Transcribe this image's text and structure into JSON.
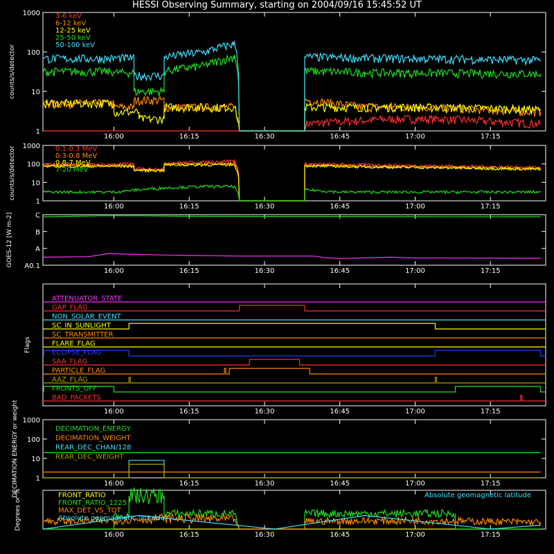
{
  "title": "HESSI Observing Summary, starting on 2004/09/16 15:45:52 UT",
  "time_ticks": [
    "16:00",
    "16:15",
    "16:30",
    "16:45",
    "17:00",
    "17:15"
  ],
  "colors": {
    "red": "#ff3030",
    "orange": "#ff8a00",
    "yellow": "#ffff00",
    "green": "#20e020",
    "cyan": "#40e0ff",
    "magenta": "#ff30ff",
    "blue": "#2040ff",
    "olive": "#b0a000",
    "white": "#ffffff"
  },
  "chart_data": [
    {
      "type": "line",
      "panel": "hxr",
      "ylabel": "counts/s/detector",
      "yscale": "log",
      "ylim": [
        1,
        1000
      ],
      "ytick_labels": [
        "1",
        "10",
        "100",
        "1000"
      ],
      "x_unit": "UT time",
      "series": [
        {
          "name": "3-6 keV",
          "color": "red",
          "x": [
            "15:46",
            "16:00",
            "16:00",
            "16:03",
            "16:08",
            "16:08",
            "16:14",
            "16:24",
            "16:24",
            "16:38",
            "16:38",
            "16:55",
            "17:05",
            "17:25"
          ],
          "y": [
            1,
            1,
            1,
            1,
            1,
            1,
            1,
            1,
            1,
            1,
            1.5,
            2,
            2,
            1.5
          ]
        },
        {
          "name": "6-12 keV",
          "color": "orange",
          "x": [
            "15:46",
            "16:00",
            "16:00",
            "16:04",
            "16:04",
            "16:10",
            "16:10",
            "16:24",
            "16:25",
            "16:38",
            "16:38",
            "16:50",
            "17:00",
            "17:25"
          ],
          "y": [
            5,
            5,
            4,
            4,
            6,
            6,
            4,
            4,
            1,
            1,
            6,
            4,
            4,
            3
          ]
        },
        {
          "name": "12-25 keV",
          "color": "yellow",
          "x": [
            "15:46",
            "16:00",
            "16:00",
            "16:05",
            "16:05",
            "16:10",
            "16:10",
            "16:24",
            "16:25",
            "16:38",
            "16:38",
            "17:00",
            "17:25"
          ],
          "y": [
            5,
            5,
            3,
            3,
            2,
            2,
            4,
            4,
            1,
            1,
            4,
            4,
            3.5
          ]
        },
        {
          "name": "25-50 keV",
          "color": "green",
          "x": [
            "15:46",
            "16:00",
            "16:00",
            "16:04",
            "16:04",
            "16:10",
            "16:10",
            "16:18",
            "16:24",
            "16:24",
            "16:25",
            "16:38",
            "16:38",
            "16:50",
            "17:10",
            "17:25"
          ],
          "y": [
            32,
            32,
            30,
            30,
            10,
            10,
            33,
            45,
            75,
            85,
            1,
            1,
            33,
            30,
            29,
            28
          ]
        },
        {
          "name": "50-100 keV",
          "color": "cyan",
          "x": [
            "15:46",
            "16:00",
            "16:00",
            "16:04",
            "16:04",
            "16:10",
            "16:10",
            "16:18",
            "16:24",
            "16:24",
            "16:25",
            "16:38",
            "16:38",
            "16:50",
            "17:10",
            "17:25"
          ],
          "y": [
            68,
            68,
            70,
            70,
            25,
            25,
            75,
            100,
            160,
            180,
            1,
            1,
            75,
            70,
            66,
            62
          ]
        }
      ]
    },
    {
      "type": "line",
      "panel": "gamma",
      "ylabel": "counts/s/detector",
      "yscale": "log",
      "ylim": [
        1,
        1000
      ],
      "ytick_labels": [
        "1",
        "10",
        "100",
        "1000"
      ],
      "series": [
        {
          "name": "0.1-0.3 MeV",
          "color": "red",
          "x": [
            "15:46",
            "16:00",
            "16:00",
            "16:04",
            "16:04",
            "16:10",
            "16:10",
            "16:18",
            "16:24",
            "16:24",
            "16:25",
            "16:38",
            "16:38",
            "16:50",
            "17:10",
            "17:25"
          ],
          "y": [
            95,
            95,
            100,
            100,
            55,
            55,
            115,
            125,
            150,
            160,
            1,
            1,
            100,
            90,
            75,
            65
          ]
        },
        {
          "name": "0.3-0.8 MeV",
          "color": "orange",
          "x": [
            "15:46",
            "16:00",
            "16:00",
            "16:04",
            "16:04",
            "16:10",
            "16:10",
            "16:24",
            "16:24",
            "16:25",
            "16:38",
            "16:38",
            "16:50",
            "17:10",
            "17:25"
          ],
          "y": [
            80,
            80,
            80,
            80,
            45,
            45,
            95,
            110,
            120,
            1,
            1,
            85,
            75,
            62,
            55
          ]
        },
        {
          "name": "0.8-7 MeV",
          "color": "yellow",
          "x": [
            "15:46",
            "16:00",
            "16:00",
            "16:04",
            "16:04",
            "16:10",
            "16:10",
            "16:24",
            "16:25",
            "16:38",
            "16:38",
            "16:50",
            "17:10",
            "17:25"
          ],
          "y": [
            75,
            75,
            75,
            75,
            45,
            45,
            88,
            90,
            1,
            1,
            80,
            70,
            60,
            52
          ]
        },
        {
          "name": "7-20 MeV",
          "color": "green",
          "x": [
            "15:46",
            "16:00",
            "16:05",
            "16:10",
            "16:18",
            "16:24",
            "16:25",
            "16:38",
            "16:38",
            "16:45",
            "17:00",
            "17:25"
          ],
          "y": [
            3,
            3,
            4,
            5,
            6,
            6,
            1,
            1,
            4,
            3,
            3,
            3
          ]
        }
      ]
    },
    {
      "type": "line",
      "panel": "goes",
      "ylabel": "GOES-12 [W m-2]",
      "yscale": "log",
      "ylim": [
        1e-09,
        1e-06
      ],
      "ytick_labels": [
        "A0.1",
        "A",
        "B",
        "C"
      ],
      "series": [
        {
          "name": "",
          "color": "green",
          "x": [
            "15:46",
            "15:58",
            "16:05",
            "16:15",
            "16:30",
            "16:45",
            "17:00",
            "17:25"
          ],
          "y": [
            7.5e-07,
            8.5e-07,
            8.5e-07,
            8e-07,
            7.8e-07,
            7.8e-07,
            7.6e-07,
            7.5e-07
          ]
        },
        {
          "name": "",
          "color": "magenta",
          "x": [
            "15:46",
            "15:55",
            "15:59",
            "16:03",
            "16:10",
            "16:25",
            "16:40",
            "16:42",
            "16:45",
            "16:55",
            "17:00",
            "17:25"
          ],
          "y": [
            3e-09,
            3.2e-09,
            5e-09,
            4.5e-09,
            4e-09,
            3.5e-09,
            3.5e-09,
            2.8e-09,
            2.5e-09,
            3e-09,
            2.7e-09,
            2.6e-09
          ]
        }
      ]
    },
    {
      "type": "step",
      "panel": "flags",
      "ylabel": "Flags",
      "series": [
        {
          "name": "ATTENUATOR_STATE",
          "color": "magenta",
          "segments": []
        },
        {
          "name": "GAP_FLAG",
          "color": "red",
          "segments": [
            [
              "16:25",
              "16:38"
            ]
          ]
        },
        {
          "name": "NON_SOLAR_EVENT",
          "color": "cyan",
          "segments": []
        },
        {
          "name": "SC_IN_SUNLIGHT",
          "color": "yellow",
          "segments": [
            [
              "16:03",
              "17:04"
            ]
          ]
        },
        {
          "name": "SC_TRANSMITTER",
          "color": "orange",
          "segments": []
        },
        {
          "name": "FLARE_FLAG",
          "color": "yellow",
          "segments": []
        },
        {
          "name": "ECLIPSE_FLAG",
          "color": "blue",
          "segments": [
            [
              "15:46",
              "16:03"
            ],
            [
              "17:04",
              "17:25"
            ]
          ]
        },
        {
          "name": "SAA_FLAG",
          "color": "red",
          "segments": [
            [
              "16:27",
              "16:37"
            ]
          ]
        },
        {
          "name": "PARTICLE_FLAG",
          "color": "orange",
          "segments": [
            [
              "16:22",
              "16:22"
            ],
            [
              "16:23",
              "16:39"
            ]
          ]
        },
        {
          "name": "AAZ_FLAG",
          "color": "olive",
          "segments": [
            [
              "16:03",
              "16:03"
            ],
            [
              "17:04",
              "17:04"
            ]
          ]
        },
        {
          "name": "FRONTS_OFF",
          "color": "green",
          "segments": [
            [
              "15:46",
              "16:00"
            ],
            [
              "17:08",
              "17:25"
            ]
          ]
        },
        {
          "name": "BAD_PACKETS",
          "color": "red",
          "segments": [
            [
              "17:21",
              "17:21"
            ]
          ]
        }
      ]
    },
    {
      "type": "line",
      "panel": "decimation",
      "ylabel": "DECIMATION ENERGY or weight",
      "yscale": "log",
      "ylim": [
        1,
        1000
      ],
      "ytick_labels": [
        "1",
        "10",
        "100",
        "1000"
      ],
      "series": [
        {
          "name": "DECIMATION_ENERGY",
          "color": "green",
          "x": [
            "15:46",
            "17:25"
          ],
          "y": [
            20,
            20
          ]
        },
        {
          "name": "DECIMATION_WEIGHT",
          "color": "orange",
          "x": [
            "15:46",
            "17:25"
          ],
          "y": [
            2,
            2
          ]
        },
        {
          "name": "REAR_DEC_CHAN/128",
          "color": "cyan",
          "x": [
            "15:46",
            "16:03",
            "16:03",
            "16:10",
            "16:10",
            "17:25"
          ],
          "y": [
            1,
            1,
            8,
            8,
            1,
            1
          ]
        },
        {
          "name": "REAR_DEC_WEIGHT",
          "color": "olive",
          "x": [
            "15:46",
            "16:03",
            "16:03",
            "16:10",
            "16:10",
            "17:25"
          ],
          "y": [
            1,
            1,
            5,
            5,
            1,
            1
          ]
        }
      ]
    },
    {
      "type": "line",
      "panel": "ratio",
      "ylabel": "Degrees or %",
      "ylim": [
        0,
        100
      ],
      "annotation": "Absolute geomagnetic latitude",
      "series": [
        {
          "name": "FRONT_RATIO",
          "color": "yellow",
          "x": [
            "15:46",
            "17:25"
          ],
          "y": [
            0,
            0
          ]
        },
        {
          "name": "FRONT_RATIO_1225",
          "color": "green",
          "x": [
            "15:46",
            "16:00",
            "16:00",
            "16:03",
            "16:03",
            "16:10",
            "16:10",
            "16:24",
            "16:25",
            "16:38",
            "16:38",
            "17:08",
            "17:08",
            "17:25"
          ],
          "y": [
            0,
            0,
            35,
            35,
            85,
            85,
            40,
            40,
            0,
            0,
            40,
            40,
            0,
            0
          ]
        },
        {
          "name": "MAX_DET_VS_TOT",
          "color": "orange",
          "x": [
            "15:46",
            "16:00",
            "16:10",
            "16:24",
            "16:25",
            "16:38",
            "16:38",
            "17:00",
            "17:25"
          ],
          "y": [
            20,
            22,
            28,
            25,
            0,
            0,
            20,
            22,
            18
          ]
        },
        {
          "name": "Absolute geomagnetic latitude",
          "color": "cyan",
          "x": [
            "15:46",
            "16:05",
            "16:32",
            "16:50",
            "17:15",
            "17:25"
          ],
          "y": [
            0,
            35,
            0,
            35,
            0,
            10
          ]
        }
      ]
    }
  ]
}
